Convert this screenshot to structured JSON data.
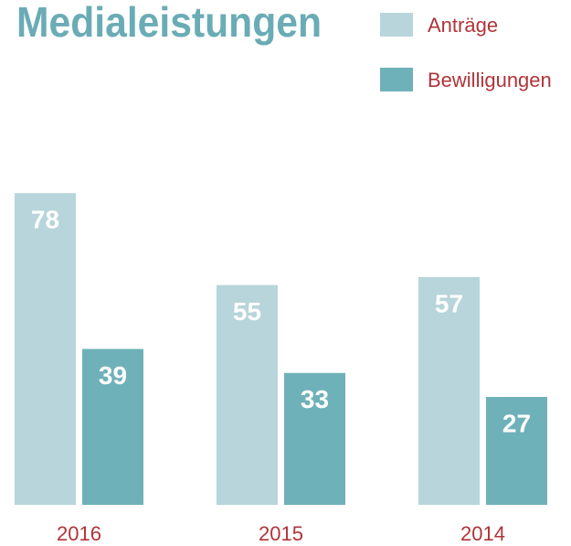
{
  "chart_data": {
    "type": "bar",
    "title": "Medialeistungen",
    "categories": [
      "2016",
      "2015",
      "2014"
    ],
    "series": [
      {
        "name": "Anträge",
        "color": "#b7d5da",
        "values": [
          78,
          55,
          57
        ]
      },
      {
        "name": "Bewilligungen",
        "color": "#6fb1b9",
        "values": [
          39,
          33,
          27
        ]
      }
    ]
  }
}
